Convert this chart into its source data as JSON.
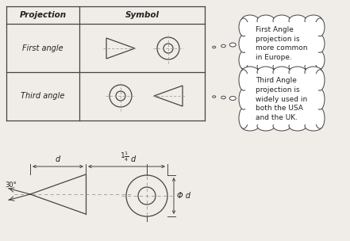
{
  "bg_color": "#f0ede8",
  "line_color": "#444444",
  "dash_color": "#999999",
  "font_color": "#222222",
  "bubble1_text": "First Angle\nprojection is\nmore common\nin Europe.",
  "bubble2_text": "Third Angle\nprojection is\nwidely used in\nboth the USA\nand the UK.",
  "header1": "Projection",
  "header2": "Symbol",
  "row1_label": "First angle",
  "row2_label": "Third angle",
  "angle_label": "30°",
  "dim_d": "d",
  "dim_1_25d": "1",
  "dim_phi": "Φ d"
}
